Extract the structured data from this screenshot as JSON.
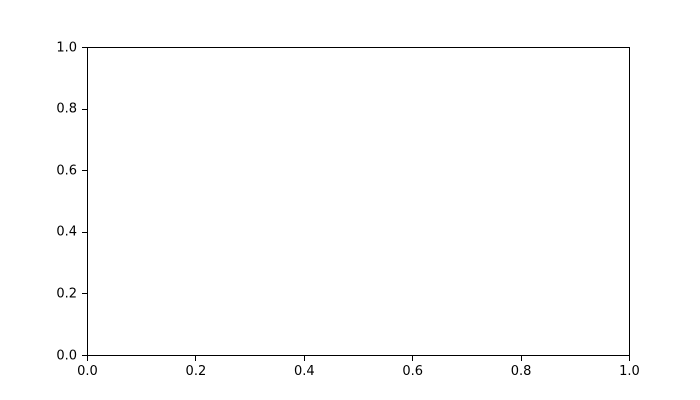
{
  "chart_data": {
    "type": "line",
    "title": "",
    "xlabel": "",
    "ylabel": "",
    "xlim": [
      0.0,
      1.0
    ],
    "ylim": [
      0.0,
      1.0
    ],
    "x_tick_values": [
      0.0,
      0.2,
      0.4,
      0.6,
      0.8,
      1.0
    ],
    "x_tick_labels": [
      "0.0",
      "0.2",
      "0.4",
      "0.6",
      "0.8",
      "1.0"
    ],
    "y_tick_values": [
      0.0,
      0.2,
      0.4,
      0.6,
      0.8,
      1.0
    ],
    "y_tick_labels": [
      "0.0",
      "0.2",
      "0.4",
      "0.6",
      "0.8",
      "1.0"
    ],
    "series": [],
    "grid": false,
    "legend": false
  },
  "colors": {
    "background": "#ffffff",
    "spine": "#000000",
    "tick_text": "#000000"
  }
}
